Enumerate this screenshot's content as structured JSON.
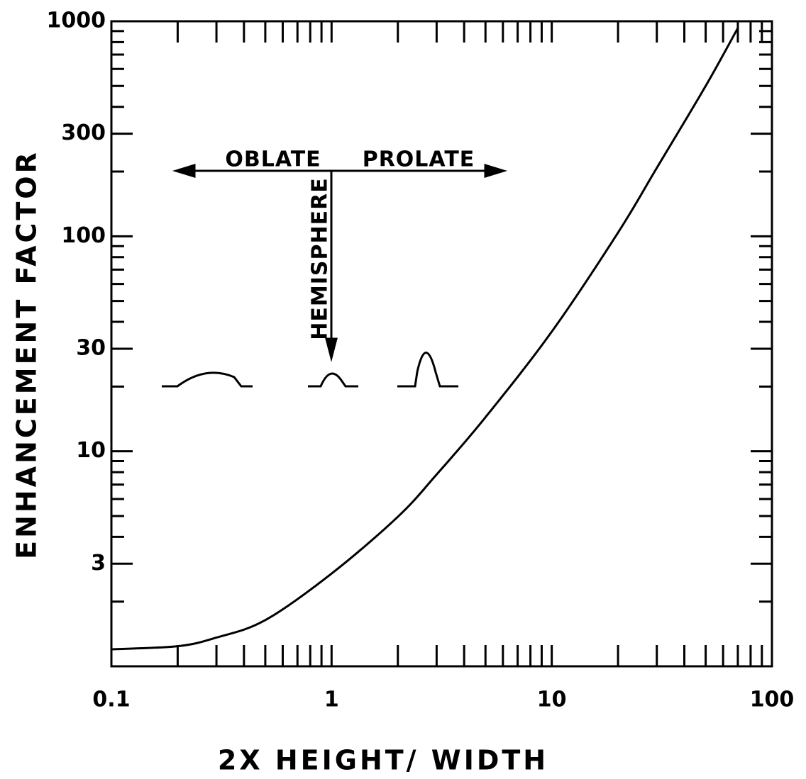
{
  "chart_data": {
    "type": "line",
    "x_label": "2X HEIGHT/ WIDTH",
    "y_label": "ENHANCEMENT FACTOR",
    "x_scale": "log",
    "y_scale": "log",
    "color": "#000000",
    "xlim": [
      0.1,
      100
    ],
    "ylim": [
      1,
      1000
    ],
    "xticks": [
      0.1,
      1,
      10,
      100
    ],
    "yticks": [
      3,
      10,
      30,
      100,
      300,
      1000
    ],
    "xminorticks": [
      0.2,
      0.3,
      0.4,
      0.5,
      0.6,
      0.7,
      0.8,
      0.9,
      2,
      3,
      4,
      5,
      6,
      7,
      8,
      9,
      20,
      30,
      40,
      50,
      60,
      70,
      80,
      90
    ],
    "yminorticks": [
      2,
      4,
      5,
      6,
      7,
      8,
      9,
      20,
      40,
      50,
      60,
      70,
      80,
      90,
      200,
      400,
      500,
      600,
      700,
      800,
      900
    ],
    "x": [
      0.1,
      0.2,
      0.3,
      0.5,
      1,
      2,
      3,
      5,
      10,
      20,
      30,
      50,
      70
    ],
    "values": [
      1.2,
      1.24,
      1.36,
      1.64,
      2.7,
      4.96,
      7.8,
      14.4,
      36,
      104,
      208,
      500,
      930
    ],
    "annotations": {
      "oblate": "OBLATE",
      "prolate": "PROLATE",
      "hemisphere": "HEMISPHERE"
    }
  }
}
